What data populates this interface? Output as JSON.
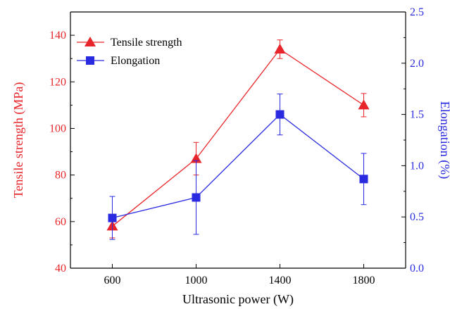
{
  "chart_data": {
    "type": "line",
    "xlabel": "Ultrasonic power (W)",
    "ylabel_left": "Tensile strength (MPa)",
    "ylabel_right": "Elongation (%)",
    "x": [
      600,
      1000,
      1400,
      1800
    ],
    "x_ticks": [
      "600",
      "1000",
      "1400",
      "1800"
    ],
    "xlim": [
      400,
      2000
    ],
    "ylim_left": [
      40,
      150
    ],
    "yticks_left": [
      "40",
      "60",
      "80",
      "100",
      "120",
      "140"
    ],
    "ylim_right": [
      0.0,
      2.5
    ],
    "yticks_right": [
      "0.0",
      "0.5",
      "1.0",
      "1.5",
      "2.0",
      "2.5"
    ],
    "colors": {
      "left": "#e8252a",
      "right": "#2a2ae0"
    },
    "legend_position": "top-left",
    "series": [
      {
        "name": "Tensile strength",
        "axis": "left",
        "marker": "triangle",
        "color": "#e8252a",
        "values": [
          58,
          87,
          134,
          110
        ],
        "err": [
          5,
          7,
          4,
          5
        ]
      },
      {
        "name": "Elongation",
        "axis": "right",
        "marker": "square",
        "color": "#2a2ae0",
        "values": [
          0.49,
          0.69,
          1.5,
          0.87
        ],
        "err": [
          0.21,
          0.36,
          0.2,
          0.25
        ]
      }
    ]
  }
}
